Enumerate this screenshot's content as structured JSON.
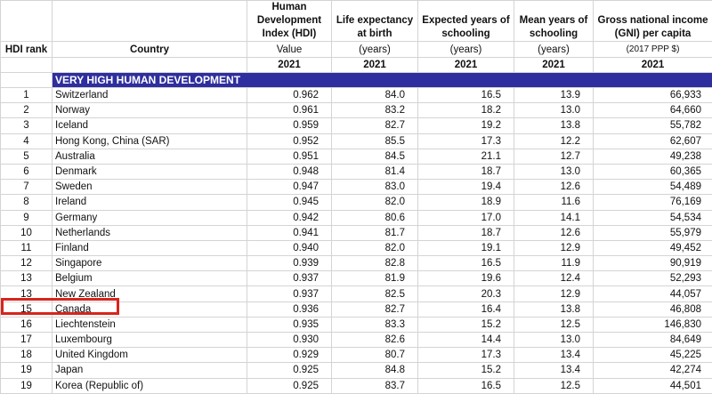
{
  "headers": {
    "rank": "HDI rank",
    "country": "Country",
    "hdi": "Human Development Index (HDI)",
    "life": "Life expectancy at birth",
    "expected": "Expected years of schooling",
    "mean": "Mean years of schooling",
    "gni": "Gross national income (GNI) per capita"
  },
  "units": {
    "hdi": "Value",
    "life": "(years)",
    "expected": "(years)",
    "mean": "(years)",
    "gni": "(2017 PPP $)"
  },
  "year": "2021",
  "group_label": "VERY HIGH HUMAN DEVELOPMENT",
  "highlight_color": "#d8241c",
  "band_color": "#2e2e9e",
  "rows": [
    {
      "rank": "1",
      "country": "Switzerland",
      "hdi": "0.962",
      "life": "84.0",
      "expected": "16.5",
      "mean": "13.9",
      "gni": "66,933"
    },
    {
      "rank": "2",
      "country": "Norway",
      "hdi": "0.961",
      "life": "83.2",
      "expected": "18.2",
      "mean": "13.0",
      "gni": "64,660"
    },
    {
      "rank": "3",
      "country": "Iceland",
      "hdi": "0.959",
      "life": "82.7",
      "expected": "19.2",
      "mean": "13.8",
      "gni": "55,782"
    },
    {
      "rank": "4",
      "country": "Hong Kong, China (SAR)",
      "hdi": "0.952",
      "life": "85.5",
      "expected": "17.3",
      "mean": "12.2",
      "gni": "62,607"
    },
    {
      "rank": "5",
      "country": "Australia",
      "hdi": "0.951",
      "life": "84.5",
      "expected": "21.1",
      "mean": "12.7",
      "gni": "49,238"
    },
    {
      "rank": "6",
      "country": "Denmark",
      "hdi": "0.948",
      "life": "81.4",
      "expected": "18.7",
      "mean": "13.0",
      "gni": "60,365"
    },
    {
      "rank": "7",
      "country": "Sweden",
      "hdi": "0.947",
      "life": "83.0",
      "expected": "19.4",
      "mean": "12.6",
      "gni": "54,489"
    },
    {
      "rank": "8",
      "country": "Ireland",
      "hdi": "0.945",
      "life": "82.0",
      "expected": "18.9",
      "mean": "11.6",
      "gni": "76,169"
    },
    {
      "rank": "9",
      "country": "Germany",
      "hdi": "0.942",
      "life": "80.6",
      "expected": "17.0",
      "mean": "14.1",
      "gni": "54,534"
    },
    {
      "rank": "10",
      "country": "Netherlands",
      "hdi": "0.941",
      "life": "81.7",
      "expected": "18.7",
      "mean": "12.6",
      "gni": "55,979"
    },
    {
      "rank": "11",
      "country": "Finland",
      "hdi": "0.940",
      "life": "82.0",
      "expected": "19.1",
      "mean": "12.9",
      "gni": "49,452"
    },
    {
      "rank": "12",
      "country": "Singapore",
      "hdi": "0.939",
      "life": "82.8",
      "expected": "16.5",
      "mean": "11.9",
      "gni": "90,919"
    },
    {
      "rank": "13",
      "country": "Belgium",
      "hdi": "0.937",
      "life": "81.9",
      "expected": "19.6",
      "mean": "12.4",
      "gni": "52,293"
    },
    {
      "rank": "13",
      "country": "New Zealand",
      "hdi": "0.937",
      "life": "82.5",
      "expected": "20.3",
      "mean": "12.9",
      "gni": "44,057"
    },
    {
      "rank": "15",
      "country": "Canada",
      "hdi": "0.936",
      "life": "82.7",
      "expected": "16.4",
      "mean": "13.8",
      "gni": "46,808"
    },
    {
      "rank": "16",
      "country": "Liechtenstein",
      "hdi": "0.935",
      "life": "83.3",
      "expected": "15.2",
      "mean": "12.5",
      "gni": "146,830"
    },
    {
      "rank": "17",
      "country": "Luxembourg",
      "hdi": "0.930",
      "life": "82.6",
      "expected": "14.4",
      "mean": "13.0",
      "gni": "84,649"
    },
    {
      "rank": "18",
      "country": "United Kingdom",
      "hdi": "0.929",
      "life": "80.7",
      "expected": "17.3",
      "mean": "13.4",
      "gni": "45,225"
    },
    {
      "rank": "19",
      "country": "Japan",
      "hdi": "0.925",
      "life": "84.8",
      "expected": "15.2",
      "mean": "13.4",
      "gni": "42,274"
    },
    {
      "rank": "19",
      "country": "Korea (Republic of)",
      "hdi": "0.925",
      "life": "83.7",
      "expected": "16.5",
      "mean": "12.5",
      "gni": "44,501"
    }
  ]
}
